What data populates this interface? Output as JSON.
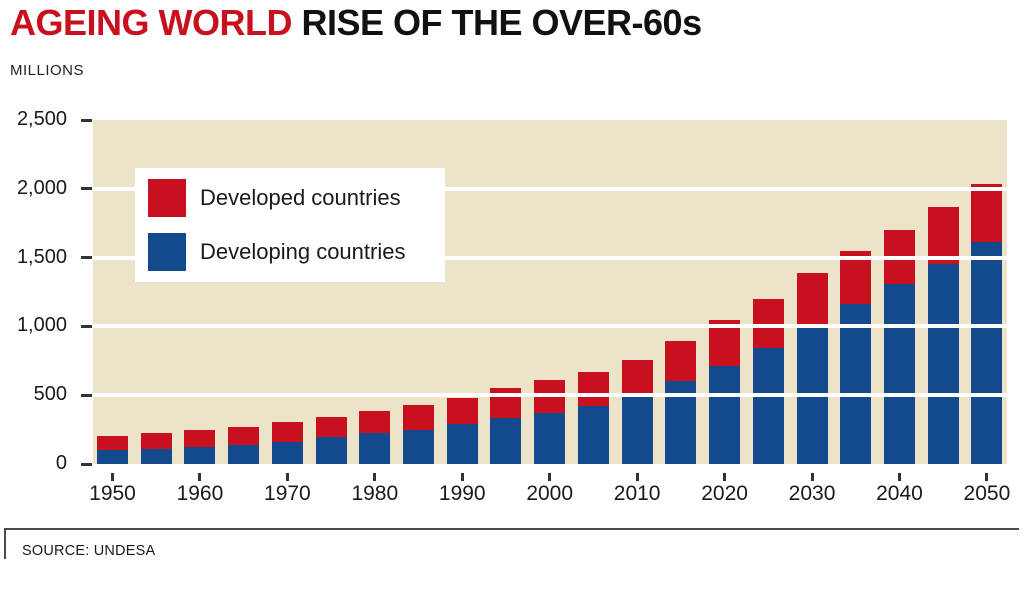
{
  "header": {
    "title_red": "AGEING WORLD",
    "title_black": " RISE OF THE OVER-60s",
    "units_label": "MILLIONS"
  },
  "footer": {
    "source_label": "SOURCE: UNDESA"
  },
  "colors": {
    "title_red": "#c9101f",
    "developed": "#c9101f",
    "developing": "#134a8e",
    "plot_background": "#ece3c8",
    "gridline": "#ffffff",
    "axis_text": "#1a1a1a"
  },
  "chart_data": {
    "type": "bar",
    "stacked": true,
    "title": "AGEING WORLD RISE OF THE OVER-60s",
    "ylabel": "MILLIONS",
    "xlabel": "",
    "ylim": [
      0,
      2500
    ],
    "y_ticks": [
      0,
      500,
      1000,
      1500,
      2000,
      2500
    ],
    "y_tick_labels": [
      "0",
      "500",
      "1,000",
      "1,500",
      "2,000",
      "2,500"
    ],
    "grid": "horizontal white lines at 500-unit intervals drawn over bars",
    "legend_position": "inside top-left",
    "categories": [
      1950,
      1955,
      1960,
      1965,
      1970,
      1975,
      1980,
      1985,
      1990,
      1995,
      2000,
      2005,
      2010,
      2015,
      2020,
      2025,
      2030,
      2035,
      2040,
      2045,
      2050
    ],
    "x_tick_labels": [
      "1950",
      "1960",
      "1970",
      "1980",
      "1990",
      "2000",
      "2010",
      "2020",
      "2030",
      "2040",
      "2050"
    ],
    "series": [
      {
        "name": "Developed countries",
        "color": "#c9101f",
        "stack_order": "top",
        "values": [
          105,
          112,
          120,
          130,
          142,
          150,
          163,
          180,
          185,
          218,
          237,
          250,
          267,
          294,
          337,
          356,
          390,
          390,
          392,
          412,
          420
        ]
      },
      {
        "name": "Developing countries",
        "color": "#134a8e",
        "stack_order": "bottom",
        "values": [
          100,
          112,
          126,
          138,
          160,
          194,
          222,
          247,
          293,
          332,
          373,
          421,
          489,
          603,
          710,
          841,
          998,
          1160,
          1309,
          1454,
          1616
        ]
      }
    ]
  }
}
